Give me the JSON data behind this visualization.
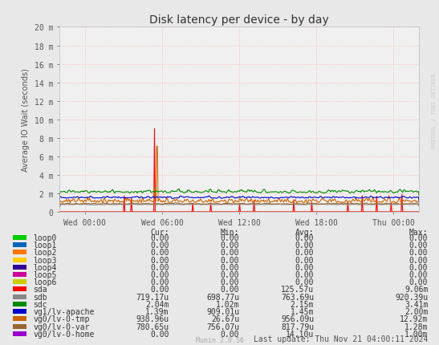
{
  "title": "Disk latency per device - by day",
  "ylabel": "Average IO Wait (seconds)",
  "background_color": "#e8e8e8",
  "plot_bg_color": "#f0f0f0",
  "grid_color": "#ffaaaa",
  "ytick_labels": [
    "0",
    "2 m",
    "4 m",
    "6 m",
    "8 m",
    "10 m",
    "12 m",
    "14 m",
    "16 m",
    "18 m",
    "20 m"
  ],
  "ytick_values": [
    0,
    0.002,
    0.004,
    0.006,
    0.008,
    0.01,
    0.012,
    0.014,
    0.016,
    0.018,
    0.02
  ],
  "ymax": 0.02,
  "xtick_labels": [
    "Wed 00:00",
    "Wed 06:00",
    "Wed 12:00",
    "Wed 18:00",
    "Thu 00:00"
  ],
  "xtick_positions": [
    2,
    8,
    14,
    20,
    26
  ],
  "xlim": [
    0,
    28
  ],
  "watermark": "RRDTOOL / TOBI OETIKER",
  "footer": "Munin 2.0.56",
  "last_update": "Last update: Thu Nov 21 04:00:11 2024",
  "legend": [
    {
      "label": "loop0",
      "color": "#00cc00",
      "cur": "0.00",
      "min": "0.00",
      "avg": "0.00",
      "max": "0.00"
    },
    {
      "label": "loop1",
      "color": "#0066bb",
      "cur": "0.00",
      "min": "0.00",
      "avg": "0.00",
      "max": "0.00"
    },
    {
      "label": "loop2",
      "color": "#ff7700",
      "cur": "0.00",
      "min": "0.00",
      "avg": "0.00",
      "max": "0.00"
    },
    {
      "label": "loop3",
      "color": "#ffcc00",
      "cur": "0.00",
      "min": "0.00",
      "avg": "0.00",
      "max": "0.00"
    },
    {
      "label": "loop4",
      "color": "#330099",
      "cur": "0.00",
      "min": "0.00",
      "avg": "0.00",
      "max": "0.00"
    },
    {
      "label": "loop5",
      "color": "#cc0099",
      "cur": "0.00",
      "min": "0.00",
      "avg": "0.00",
      "max": "0.00"
    },
    {
      "label": "loop6",
      "color": "#cccc00",
      "cur": "0.00",
      "min": "0.00",
      "avg": "0.00",
      "max": "0.00"
    },
    {
      "label": "sda",
      "color": "#ff0000",
      "cur": "0.00",
      "min": "0.00",
      "avg": "125.57u",
      "max": "9.06m"
    },
    {
      "label": "sdb",
      "color": "#888888",
      "cur": "719.17u",
      "min": "698.77u",
      "avg": "763.69u",
      "max": "920.39u"
    },
    {
      "label": "sdc",
      "color": "#008800",
      "cur": "2.04m",
      "min": "1.02m",
      "avg": "2.15m",
      "max": "3.41m"
    },
    {
      "label": "vg1/lv-apache",
      "color": "#0000cc",
      "cur": "1.39m",
      "min": "909.01u",
      "avg": "1.45m",
      "max": "2.00m"
    },
    {
      "label": "vg0/lv-0-tmp",
      "color": "#cc6600",
      "cur": "938.96u",
      "min": "26.67u",
      "avg": "956.09u",
      "max": "12.92m"
    },
    {
      "label": "vg0/lv-0-var",
      "color": "#996633",
      "cur": "780.65u",
      "min": "756.07u",
      "avg": "817.79u",
      "max": "1.28m"
    },
    {
      "label": "vg0/lv-0-home",
      "color": "#9900cc",
      "cur": "0.00",
      "min": "0.00",
      "avg": "14.10u",
      "max": "1.00m"
    }
  ]
}
